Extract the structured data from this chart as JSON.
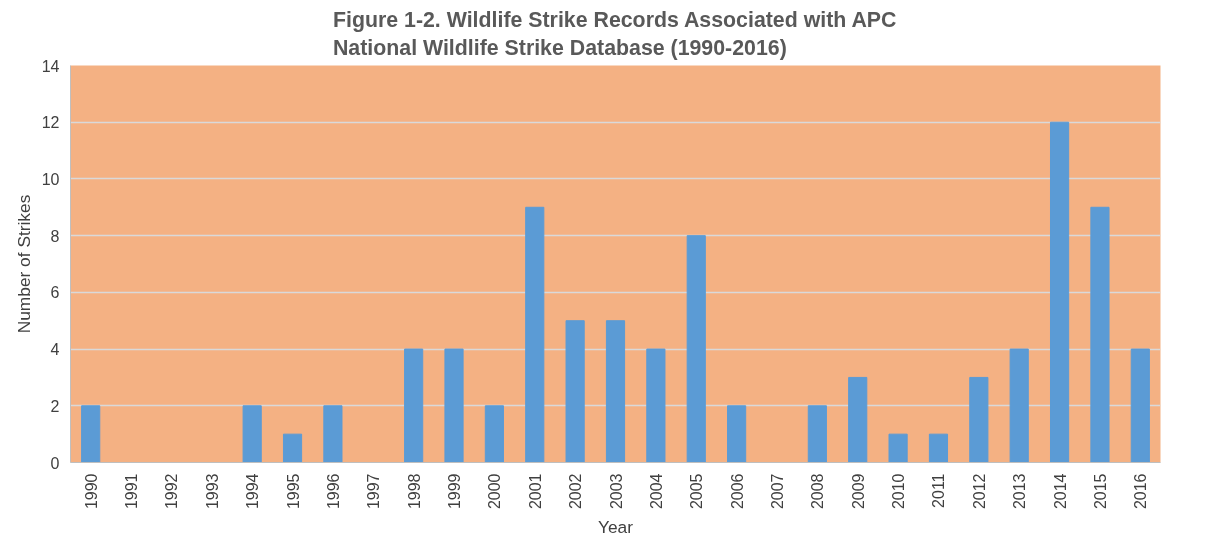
{
  "chart_data": {
    "type": "bar",
    "title": "Figure 1-2. Wildlife Strike Records Associated with APC\nNational Wildlife Strike Database (1990-2016)",
    "xlabel": "Year",
    "ylabel": "Number of Strikes",
    "categories": [
      "1990",
      "1991",
      "1992",
      "1993",
      "1994",
      "1995",
      "1996",
      "1997",
      "1998",
      "1999",
      "2000",
      "2001",
      "2002",
      "2003",
      "2004",
      "2005",
      "2006",
      "2007",
      "2008",
      "2009",
      "2010",
      "2011",
      "2012",
      "2013",
      "2014",
      "2015",
      "2016"
    ],
    "values": [
      2,
      0,
      0,
      0,
      2,
      1,
      2,
      0,
      4,
      4,
      2,
      9,
      5,
      5,
      4,
      8,
      2,
      0,
      2,
      3,
      1,
      1,
      3,
      4,
      12,
      9,
      4
    ],
    "color": "#5b9bd5",
    "ylim": [
      0,
      14
    ],
    "yticks": [
      0,
      2,
      4,
      6,
      8,
      10,
      12,
      14
    ],
    "grid": "y"
  }
}
